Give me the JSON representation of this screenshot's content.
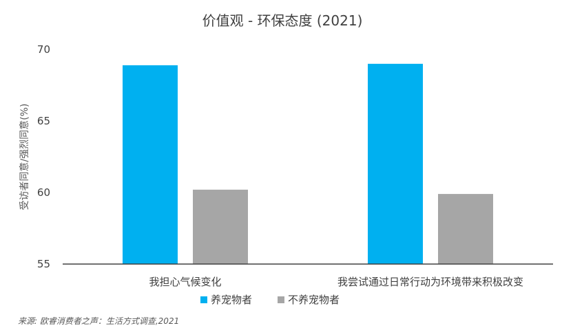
{
  "chart_data": {
    "type": "bar",
    "title": "价值观 - 环保态度 (2021)",
    "ylabel": "受访者同意/强烈同意(%)",
    "xlabel": "",
    "categories": [
      "我担心气候变化",
      "我尝试通过日常行动为环境带来积极改变"
    ],
    "series": [
      {
        "name": "养宠物者",
        "values": [
          68.9,
          69.0
        ],
        "color": "#00b0f0"
      },
      {
        "name": "不养宠物者",
        "values": [
          60.2,
          59.9
        ],
        "color": "#a6a6a6"
      }
    ],
    "ylim": [
      55,
      70
    ],
    "yticks": [
      55,
      60,
      65,
      70
    ],
    "grid": false,
    "legend_position": "bottom"
  },
  "source": "来源: 欧睿消费者之声：生活方式调查,2021"
}
